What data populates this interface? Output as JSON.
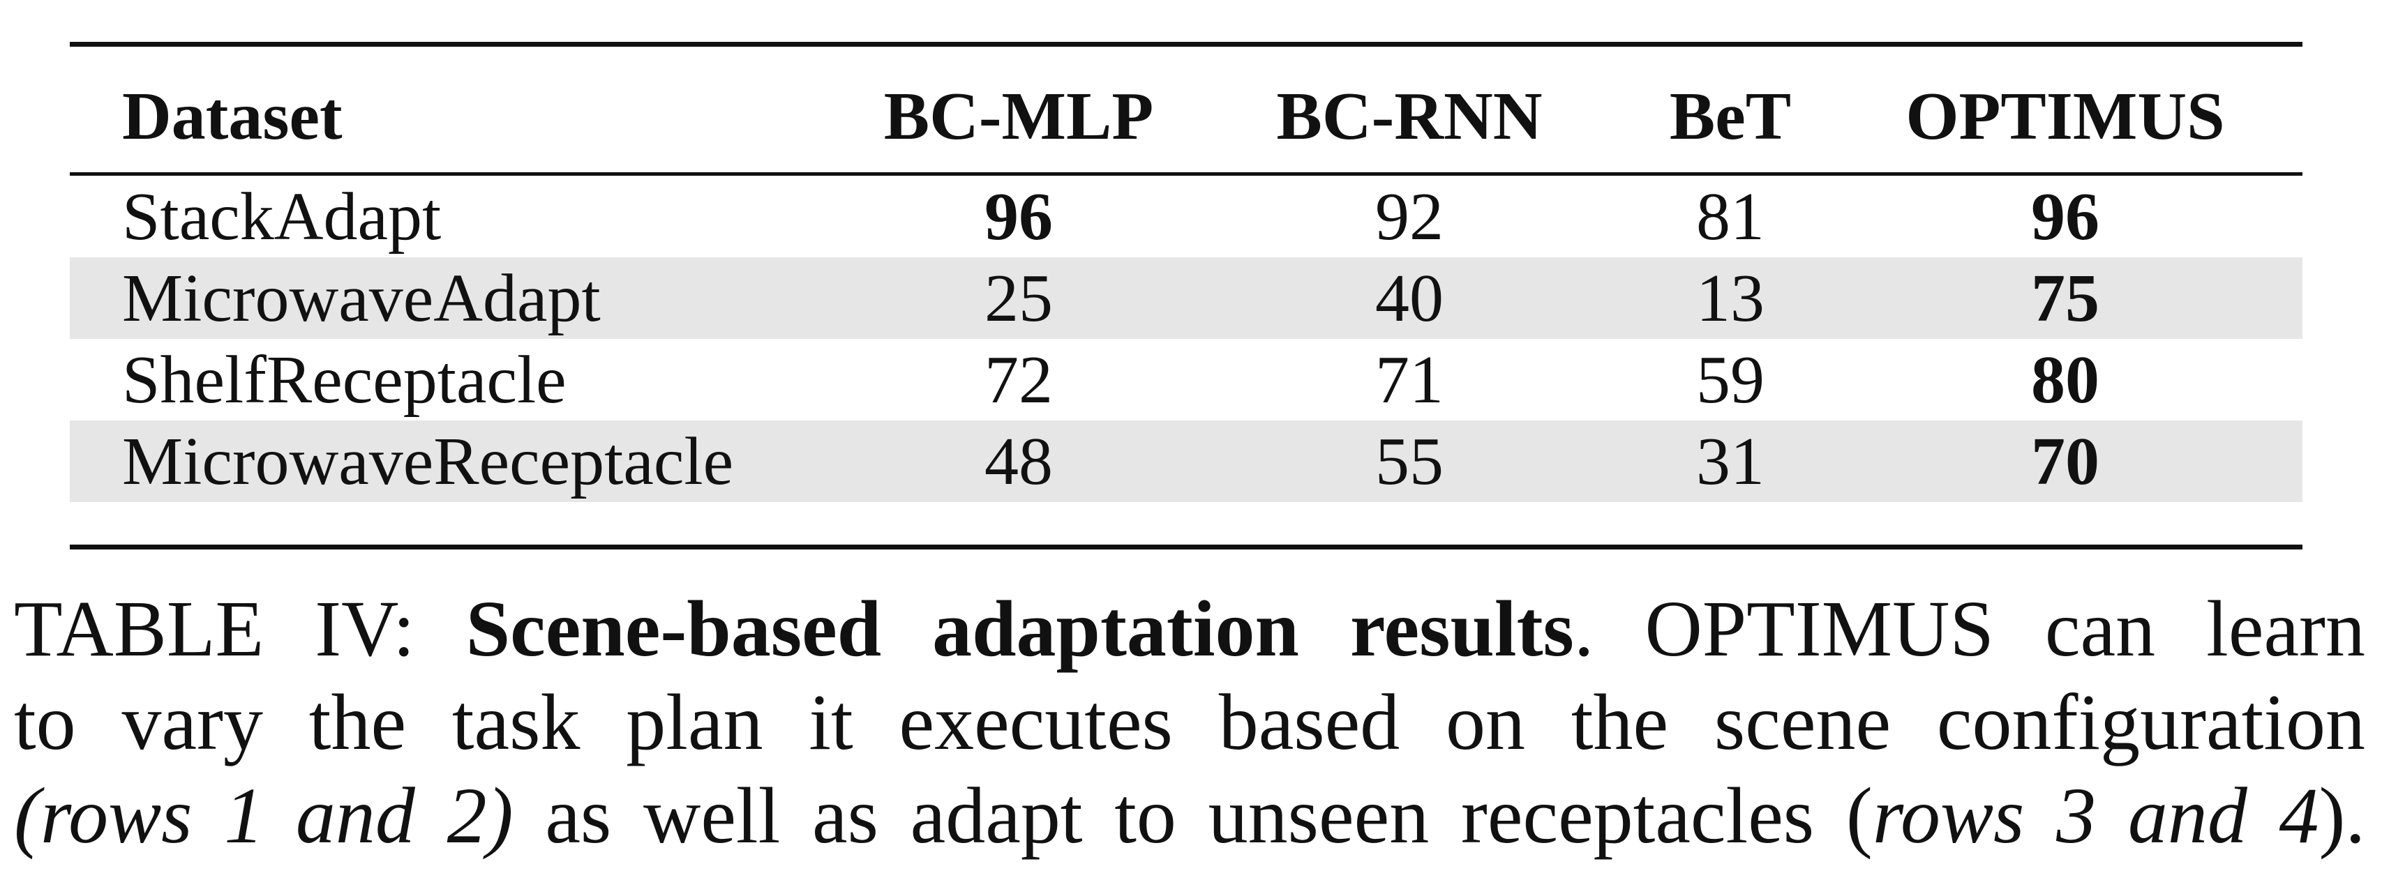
{
  "table": {
    "headers": {
      "dataset": "Dataset",
      "bc_mlp": "BC-MLP",
      "bc_rnn": "BC-RNN",
      "bet": "BeT",
      "optimus": "OPTIMUS"
    },
    "rows": [
      {
        "dataset": "StackAdapt",
        "bc_mlp": "96",
        "bc_rnn": "92",
        "bet": "81",
        "optimus": "96"
      },
      {
        "dataset": "MicrowaveAdapt",
        "bc_mlp": "25",
        "bc_rnn": "40",
        "bet": "13",
        "optimus": "75"
      },
      {
        "dataset": "ShelfReceptacle",
        "bc_mlp": "72",
        "bc_rnn": "71",
        "bet": "59",
        "optimus": "80"
      },
      {
        "dataset": "MicrowaveReceptacle",
        "bc_mlp": "48",
        "bc_rnn": "55",
        "bet": "31",
        "optimus": "70"
      }
    ]
  },
  "caption": {
    "label": "TABLE IV:",
    "bold_title": "Scene-based adaptation results",
    "line1_rest": ". OPTIMUS can learn",
    "line2": "to vary the task plan it executes based on the scene configuration",
    "line3_italic_a": "(rows 1 and 2)",
    "line3_mid": " as well as adapt to unseen receptacles (",
    "line3_italic_b": "rows 3 and 4",
    "line3_end": ")."
  }
}
